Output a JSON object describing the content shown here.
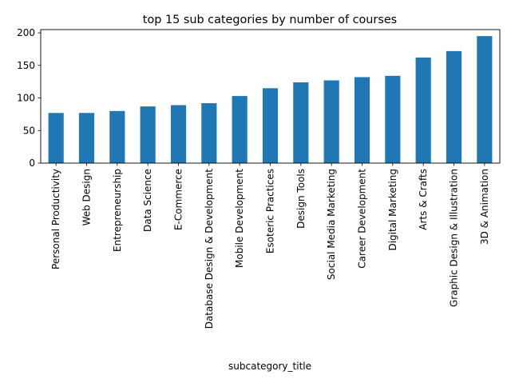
{
  "chart_data": {
    "type": "bar",
    "title": "top 15 sub categories by number of courses",
    "xlabel": "subcategory_title",
    "ylabel": "",
    "ylim": [
      0,
      205
    ],
    "yticks": [
      0,
      50,
      100,
      150,
      200
    ],
    "grid": false,
    "categories": [
      "Personal Productivity",
      "Web Design",
      "Entrepreneurship",
      "Data Science",
      "E-Commerce",
      "Database Design & Development",
      "Mobile Development",
      "Esoteric Practices",
      "Design Tools",
      "Social Media Marketing",
      "Career Development",
      "Digital Marketing",
      "Arts & Crafts",
      "Graphic Design & Illustration",
      "3D & Animation"
    ],
    "values": [
      77,
      77,
      80,
      87,
      89,
      92,
      103,
      115,
      124,
      127,
      132,
      134,
      162,
      172,
      195
    ],
    "bar_color": "#1f77b4"
  }
}
